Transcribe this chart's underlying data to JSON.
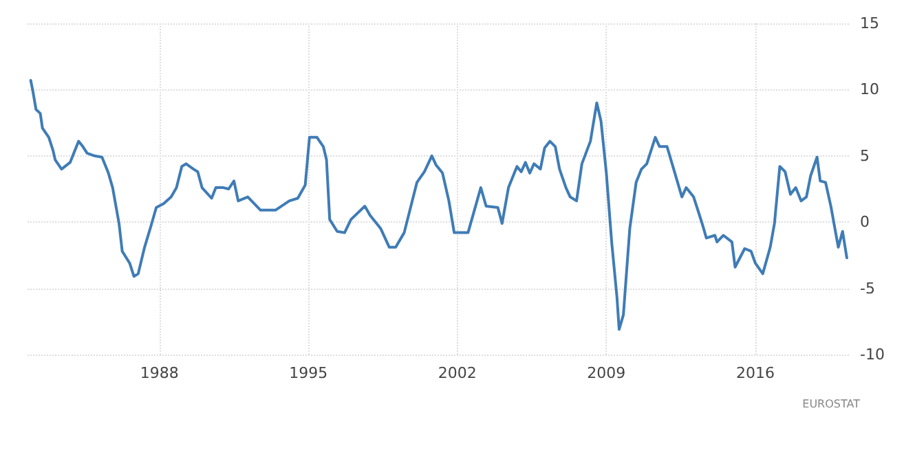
{
  "chart_data": {
    "type": "line",
    "x": [
      1981.95,
      1982.05,
      1982.2,
      1982.4,
      1982.5,
      1982.8,
      1983.0,
      1983.1,
      1983.4,
      1983.8,
      1984.2,
      1984.4,
      1984.6,
      1984.95,
      1985.3,
      1985.6,
      1985.8,
      1986.1,
      1986.25,
      1986.6,
      1986.8,
      1987.0,
      1987.3,
      1987.6,
      1987.85,
      1988.2,
      1988.55,
      1988.8,
      1989.05,
      1989.25,
      1989.6,
      1989.8,
      1990.0,
      1990.45,
      1990.65,
      1991.0,
      1991.25,
      1991.5,
      1991.7,
      1992.15,
      1992.75,
      1993.45,
      1994.1,
      1994.5,
      1994.85,
      1995.05,
      1995.4,
      1995.7,
      1995.85,
      1996.0,
      1996.35,
      1996.7,
      1997.0,
      1997.65,
      1997.9,
      1998.4,
      1998.8,
      1999.1,
      1999.5,
      2000.1,
      2000.45,
      2000.8,
      2001.0,
      2001.3,
      2001.6,
      2001.85,
      2002.5,
      2002.8,
      2003.1,
      2003.35,
      2003.9,
      2004.1,
      2004.4,
      2004.8,
      2005.0,
      2005.2,
      2005.4,
      2005.6,
      2005.9,
      2006.1,
      2006.35,
      2006.6,
      2006.8,
      2007.1,
      2007.3,
      2007.6,
      2007.85,
      2008.25,
      2008.55,
      2008.75,
      2009.0,
      2009.25,
      2009.5,
      2009.6,
      2009.8,
      2010.1,
      2010.4,
      2010.65,
      2010.9,
      2011.3,
      2011.5,
      2011.85,
      2012.2,
      2012.55,
      2012.75,
      2013.1,
      2013.5,
      2013.7,
      2014.1,
      2014.2,
      2014.5,
      2014.9,
      2015.05,
      2015.5,
      2015.8,
      2016.0,
      2016.35,
      2016.7,
      2016.9,
      2017.15,
      2017.4,
      2017.65,
      2017.9,
      2018.15,
      2018.4,
      2018.6,
      2018.9,
      2019.05,
      2019.3,
      2019.55,
      2019.9,
      2020.1,
      2020.3
    ],
    "series": [
      {
        "color": "#3f7cb6",
        "values": [
          10.7,
          9.9,
          8.5,
          8.2,
          7.1,
          6.4,
          5.4,
          4.7,
          4.0,
          4.5,
          6.1,
          5.7,
          5.2,
          5.0,
          4.9,
          3.7,
          2.6,
          -0.1,
          -2.2,
          -3.1,
          -4.1,
          -3.9,
          -1.9,
          -0.3,
          1.1,
          1.4,
          1.9,
          2.6,
          4.2,
          4.4,
          4.0,
          3.8,
          2.6,
          1.8,
          2.6,
          2.6,
          2.5,
          3.1,
          1.6,
          1.9,
          0.9,
          0.9,
          1.6,
          1.8,
          2.8,
          6.4,
          6.4,
          5.7,
          4.7,
          0.2,
          -0.7,
          -0.8,
          0.2,
          1.2,
          0.5,
          -0.5,
          -1.9,
          -1.9,
          -0.8,
          3.0,
          3.8,
          5.0,
          4.3,
          3.7,
          1.6,
          -0.8,
          -0.8,
          0.9,
          2.6,
          1.2,
          1.1,
          -0.1,
          2.6,
          4.2,
          3.8,
          4.5,
          3.7,
          4.4,
          4.0,
          5.6,
          6.1,
          5.7,
          4.0,
          2.6,
          1.9,
          1.6,
          4.4,
          6.1,
          9.0,
          7.6,
          3.7,
          -1.5,
          -5.7,
          -8.1,
          -7.0,
          -0.5,
          3.0,
          4.0,
          4.4,
          6.4,
          5.7,
          5.7,
          3.8,
          1.9,
          2.6,
          1.9,
          -0.1,
          -1.2,
          -1.0,
          -1.5,
          -1.0,
          -1.5,
          -3.4,
          -2.0,
          -2.2,
          -3.1,
          -3.9,
          -1.9,
          -0.1,
          4.2,
          3.8,
          2.1,
          2.6,
          1.6,
          1.9,
          3.5,
          4.9,
          3.1,
          3.0,
          1.2,
          -1.9,
          -0.7,
          -2.7
        ]
      }
    ],
    "xlim": [
      1981.8,
      2020.4
    ],
    "xticks": [
      1988,
      1995,
      2002,
      2009,
      2016
    ],
    "ylim": [
      -10,
      15
    ],
    "yticks": [
      -10,
      -5,
      0,
      5,
      10,
      15
    ],
    "grid": true,
    "marker": "none",
    "line_style": "solid",
    "annotations": [
      "EUROSTAT"
    ]
  }
}
